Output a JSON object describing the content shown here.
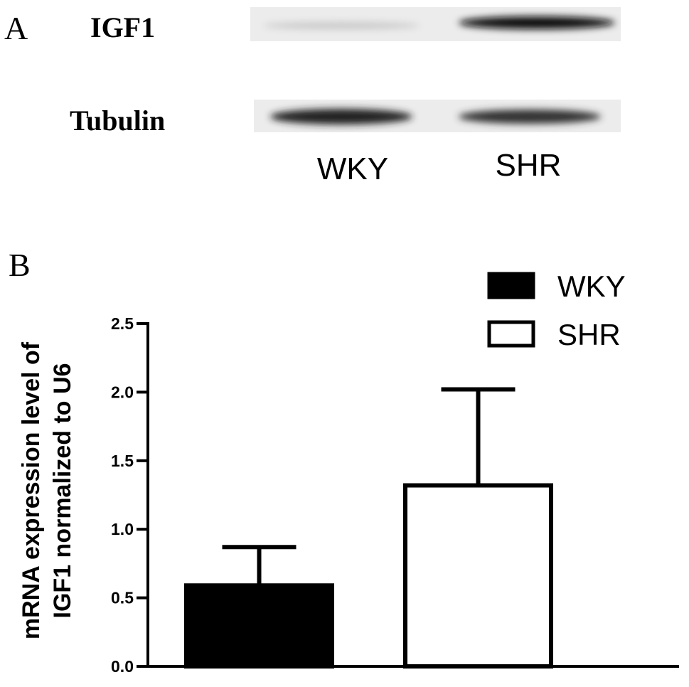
{
  "panel_a": {
    "label": "A",
    "rows": [
      "IGF1",
      "Tubulin"
    ],
    "lanes": [
      "WKY",
      "SHR"
    ]
  },
  "chart_data": {
    "type": "bar",
    "panel_label": "B",
    "ylabel": [
      "mRNA expression level of",
      "IGF1 normalized to U6"
    ],
    "categories": [
      null
    ],
    "series": [
      {
        "name": "WKY",
        "color": "#000000",
        "values": [
          0.59
        ],
        "errors": [
          0.28
        ]
      },
      {
        "name": "SHR",
        "color": "#ffffff",
        "values": [
          1.32
        ],
        "errors": [
          0.7
        ]
      }
    ],
    "ylim": [
      0,
      2.5
    ],
    "yticks": [
      {
        "value": 0,
        "label": "0.0"
      },
      0.5,
      {
        "value": 1,
        "label": "1.0"
      },
      1.5,
      {
        "value": 2,
        "label": "2.0"
      },
      2.5
    ],
    "legend": "upper right"
  }
}
